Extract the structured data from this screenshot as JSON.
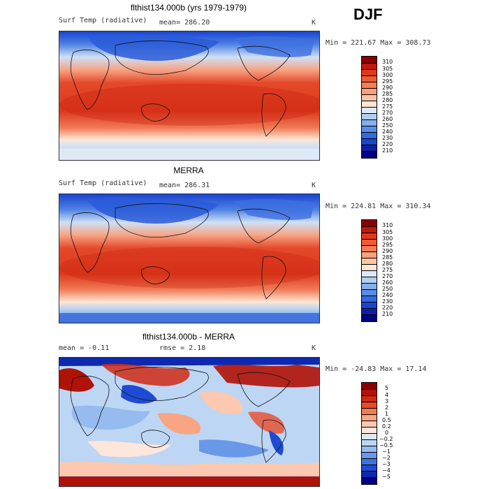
{
  "season": "DJF",
  "panels": [
    {
      "title": "flthist134.000b (yrs 1979-1979)",
      "variable": "Surf Temp (radiative)",
      "stat": "mean=  286.20",
      "units": "K",
      "range": "Min = 221.67 Max = 308.73",
      "levels": [
        "310",
        "305",
        "300",
        "295",
        "290",
        "285",
        "280",
        "275",
        "270",
        "260",
        "250",
        "240",
        "230",
        "220",
        "210"
      ],
      "colors": [
        "#8a0000",
        "#c0190e",
        "#dd3a1c",
        "#ee5a32",
        "#f57c55",
        "#f9a07c",
        "#fcc4a6",
        "#fde6d6",
        "#dce9f7",
        "#b2cff1",
        "#86b0ec",
        "#5a8de6",
        "#346ae0",
        "#1a45cf",
        "#0c1fa8",
        "#000080"
      ]
    },
    {
      "title": "MERRA",
      "variable": "Surf Temp (radiative)",
      "stat": "mean=  286.31",
      "units": "K",
      "range": "Min = 224.81 Max = 310.34",
      "levels": [
        "310",
        "305",
        "300",
        "295",
        "290",
        "285",
        "280",
        "275",
        "270",
        "260",
        "250",
        "240",
        "230",
        "220",
        "210"
      ],
      "colors": [
        "#8a0000",
        "#c0190e",
        "#dd3a1c",
        "#ee5a32",
        "#f57c55",
        "#f9a07c",
        "#fcc4a6",
        "#fde6d6",
        "#dce9f7",
        "#b2cff1",
        "#86b0ec",
        "#5a8de6",
        "#346ae0",
        "#1a45cf",
        "#0c1fa8",
        "#000080"
      ]
    },
    {
      "title": "flthist134.000b - MERRA",
      "stat_mean": "mean =   -0.11",
      "stat_rmse": "rmse =    2.18",
      "units": "K",
      "range": "Min = -24.83 Max =   17.14",
      "levels": [
        "5",
        "4",
        "3",
        "2",
        "1",
        "0.5",
        "0.2",
        "0",
        "−0.2",
        "−0.5",
        "−1",
        "−2",
        "−3",
        "−4",
        "−5"
      ],
      "colors": [
        "#8a0000",
        "#b01208",
        "#d02a15",
        "#e84c2a",
        "#f47a54",
        "#f9a483",
        "#fcc8b0",
        "#fde6dc",
        "#dce9f7",
        "#bdd6f4",
        "#95bbef",
        "#6a98e8",
        "#3f72e0",
        "#1f4bd2",
        "#0e28b0",
        "#000080"
      ]
    }
  ]
}
